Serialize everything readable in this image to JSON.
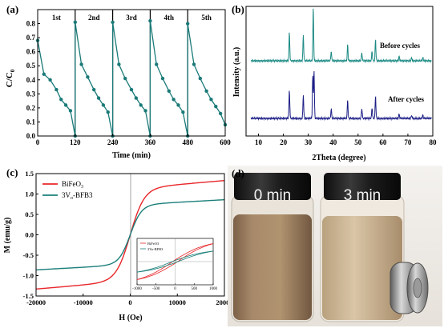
{
  "panels": {
    "a": {
      "letter": "(a)"
    },
    "b": {
      "letter": "(b)"
    },
    "c": {
      "letter": "(c)"
    },
    "d": {
      "letter": "(d)"
    }
  },
  "photo": {
    "left_label": "0 min",
    "right_label": "3 min",
    "colors": {
      "liquid": "#a08363",
      "cap": "#1c1c1c",
      "magnet": "#8e8e8e",
      "bg": "#f1eee9"
    }
  },
  "chart_data": [
    {
      "id": "a",
      "type": "line",
      "xlabel": "Time (min)",
      "ylabel": "C/C0",
      "ylabel_main": "C/C",
      "ylabel_sub": "0",
      "xlim": [
        0,
        600
      ],
      "ylim": [
        0.0,
        0.9
      ],
      "xticks": [
        0,
        120,
        240,
        360,
        480,
        600
      ],
      "yticks": [
        0.0,
        0.1,
        0.2,
        0.3,
        0.4,
        0.5,
        0.6,
        0.7,
        0.8
      ],
      "cycle_labels": [
        "1st",
        "2nd",
        "3rd",
        "4th",
        "5th"
      ],
      "color": "#1a7a78",
      "points": [
        [
          0,
          0.68
        ],
        [
          20,
          0.44
        ],
        [
          40,
          0.4
        ],
        [
          60,
          0.33
        ],
        [
          75,
          0.26
        ],
        [
          90,
          0.22
        ],
        [
          105,
          0.18
        ],
        [
          120,
          0.0
        ],
        [
          120,
          0.81
        ],
        [
          140,
          0.51
        ],
        [
          160,
          0.42
        ],
        [
          180,
          0.33
        ],
        [
          195,
          0.27
        ],
        [
          210,
          0.22
        ],
        [
          225,
          0.17
        ],
        [
          240,
          0.0
        ],
        [
          240,
          0.81
        ],
        [
          260,
          0.51
        ],
        [
          280,
          0.41
        ],
        [
          300,
          0.33
        ],
        [
          315,
          0.27
        ],
        [
          330,
          0.22
        ],
        [
          345,
          0.18
        ],
        [
          360,
          0.0
        ],
        [
          360,
          0.82
        ],
        [
          380,
          0.51
        ],
        [
          400,
          0.41
        ],
        [
          420,
          0.32
        ],
        [
          435,
          0.26
        ],
        [
          450,
          0.22
        ],
        [
          465,
          0.17
        ],
        [
          480,
          0.0
        ],
        [
          480,
          0.8
        ],
        [
          500,
          0.51
        ],
        [
          520,
          0.41
        ],
        [
          540,
          0.32
        ],
        [
          555,
          0.26
        ],
        [
          570,
          0.21
        ],
        [
          585,
          0.16
        ],
        [
          600,
          0.08
        ]
      ]
    },
    {
      "id": "b",
      "type": "line",
      "xlabel": "2Theta (degree)",
      "ylabel": "Intensity (a.u.)",
      "xlim": [
        5,
        80
      ],
      "xticks": [
        10,
        20,
        30,
        40,
        50,
        60,
        70,
        80
      ],
      "series": [
        {
          "name": "Before cycles",
          "color": "#1b8a84",
          "peaks": [
            [
              22.4,
              52
            ],
            [
              28.0,
              48
            ],
            [
              32.0,
              98
            ],
            [
              39.2,
              18
            ],
            [
              45.8,
              30
            ],
            [
              51.5,
              15
            ],
            [
              55.6,
              18
            ],
            [
              57.0,
              40
            ],
            [
              66.5,
              8
            ],
            [
              71.5,
              6
            ],
            [
              76.0,
              6
            ]
          ]
        },
        {
          "name": "After cycles",
          "color": "#1c1e86",
          "peaks": [
            [
              22.4,
              52
            ],
            [
              28.0,
              44
            ],
            [
              31.8,
              78
            ],
            [
              32.3,
              88
            ],
            [
              39.2,
              18
            ],
            [
              45.8,
              34
            ],
            [
              51.5,
              18
            ],
            [
              55.6,
              20
            ],
            [
              57.0,
              42
            ],
            [
              66.5,
              8
            ],
            [
              71.5,
              6
            ],
            [
              76.0,
              6
            ]
          ]
        }
      ]
    },
    {
      "id": "c",
      "type": "line",
      "xlabel": "H (Oe)",
      "ylabel": "M (emu/g)",
      "xlim": [
        -20000,
        20000
      ],
      "ylim": [
        -1.5,
        1.5
      ],
      "xticks": [
        -20000,
        -10000,
        0,
        10000,
        20000
      ],
      "yticks": [
        -1.5,
        -1.0,
        -0.5,
        0.0,
        0.5,
        1.0,
        1.5
      ],
      "series": [
        {
          "name": "BiFeO3",
          "label_main": "BiFeO",
          "label_sub": "3",
          "color": "#e8262a",
          "ms": 1.33,
          "h0": 1500
        },
        {
          "name": "3Vo-BFB3",
          "label_pre": "3V",
          "label_sub": "o",
          "label_post": "-BFB3",
          "color": "#1b7f7a",
          "ms": 0.86,
          "h0": 1200
        }
      ],
      "inset": {
        "xlim": [
          -1000,
          1000
        ],
        "ylim": [
          -0.8,
          0.8
        ],
        "xticks": [
          -1000,
          -500,
          0,
          500,
          1000
        ],
        "yticks": [
          -0.8,
          -0.4,
          0.0,
          0.4,
          0.8
        ],
        "series_labels": [
          "BiFeO3",
          "3Vo-BFB3"
        ]
      }
    }
  ]
}
